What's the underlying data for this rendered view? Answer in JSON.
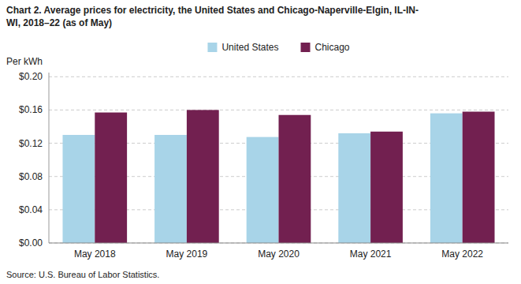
{
  "chart_data": {
    "type": "bar",
    "title": "Chart 2. Average prices for electricity, the United States and Chicago-Naperville-Elgin, IL-IN-\nWI, 2018–22 (as of May)",
    "ylabel": "Per kWh",
    "annotations": [
      "Source: U.S. Bureau of Labor Statistics."
    ],
    "categories": [
      "May 2018",
      "May 2019",
      "May 2020",
      "May 2021",
      "May 2022"
    ],
    "series": [
      {
        "name": "United States",
        "color": "#a8d4e8",
        "values": [
          0.13,
          0.13,
          0.1275,
          0.132,
          0.156
        ]
      },
      {
        "name": "Chicago",
        "color": "#722050",
        "values": [
          0.157,
          0.16,
          0.154,
          0.134,
          0.158
        ]
      }
    ],
    "ylim": [
      0.0,
      0.205
    ],
    "yticks": [
      {
        "value": 0.0,
        "label": "$0.00"
      },
      {
        "value": 0.04,
        "label": "$0.04"
      },
      {
        "value": 0.08,
        "label": "$0.08"
      },
      {
        "value": 0.12,
        "label": "$0.12"
      },
      {
        "value": 0.16,
        "label": "$0.16"
      },
      {
        "value": 0.2,
        "label": "$0.20"
      }
    ],
    "grid": true,
    "legend": "top"
  }
}
